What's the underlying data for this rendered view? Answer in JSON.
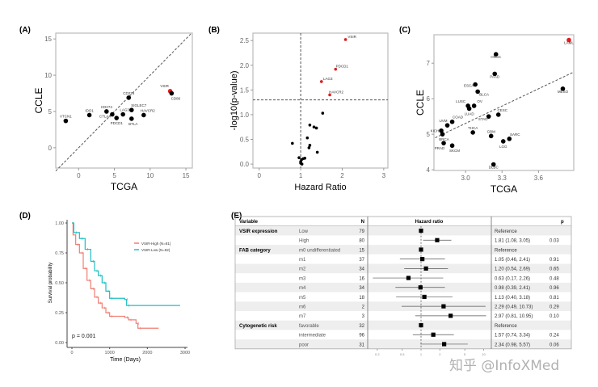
{
  "panels": {
    "a": "(A)",
    "b": "(B)",
    "c": "(C)",
    "d": "(D)",
    "e": "(E)"
  },
  "watermark": "知乎 @InfoXMed",
  "colors": {
    "highlight": "#e41a1c",
    "point": "#000000",
    "high": "#f07e74",
    "low": "#1fbfc3",
    "frame": "#bbbbbb"
  },
  "chart_data": [
    {
      "id": "a",
      "type": "scatter",
      "xlabel": "TCGA",
      "ylabel": "CCLE",
      "xlim": [
        -3.2,
        15.9
      ],
      "ylim": [
        -2.8,
        15.8
      ],
      "xticks": [
        0,
        5,
        10,
        15
      ],
      "yticks": [
        0,
        5,
        10,
        15
      ],
      "reference_line": "y = x (dashed)",
      "points": [
        {
          "label": "VTCN1",
          "x": -1.8,
          "y": 3.7
        },
        {
          "label": "IDO1",
          "x": 1.5,
          "y": 4.5
        },
        {
          "label": "CD274",
          "x": 3.9,
          "y": 5.0
        },
        {
          "label": "CTLA4",
          "x": 4.7,
          "y": 4.6
        },
        {
          "label": "PDCD1",
          "x": 5.3,
          "y": 4.1
        },
        {
          "label": "LAG3",
          "x": 6.2,
          "y": 4.6
        },
        {
          "label": "CD276",
          "x": 7.0,
          "y": 6.9
        },
        {
          "label": "SIGLEC7",
          "x": 7.4,
          "y": 5.2
        },
        {
          "label": "BTLA",
          "x": 7.4,
          "y": 4.0
        },
        {
          "label": "HAVCR2",
          "x": 9.1,
          "y": 4.5
        },
        {
          "label": "VSIR",
          "x": 12.8,
          "y": 7.8,
          "highlight": true
        },
        {
          "label": "CD86",
          "x": 13.0,
          "y": 7.5
        }
      ]
    },
    {
      "id": "b",
      "type": "scatter",
      "xlabel": "Hazard Ratio",
      "ylabel": "-log10(p-value)",
      "xlim": [
        -0.15,
        3.1
      ],
      "ylim": [
        -0.08,
        2.65
      ],
      "xticks": [
        0,
        1,
        2,
        3
      ],
      "yticks": [
        "0.0",
        "0.5",
        "1.0",
        "1.5",
        "2.0",
        "2.5"
      ],
      "vline": 1,
      "hline": 1.3,
      "points": [
        {
          "label": "VSIR",
          "x": 2.08,
          "y": 2.52,
          "highlight": true
        },
        {
          "label": "PDCD1",
          "x": 1.84,
          "y": 1.92,
          "highlight": true
        },
        {
          "label": "LAG3",
          "x": 1.5,
          "y": 1.67,
          "highlight": true
        },
        {
          "label": "HAVCR2",
          "x": 1.7,
          "y": 1.4,
          "highlight": true
        },
        {
          "x": 1.53,
          "y": 1.03
        },
        {
          "x": 1.22,
          "y": 0.79
        },
        {
          "x": 1.32,
          "y": 0.75
        },
        {
          "x": 1.38,
          "y": 0.73
        },
        {
          "x": 0.8,
          "y": 0.42
        },
        {
          "x": 1.16,
          "y": 0.53
        },
        {
          "x": 1.22,
          "y": 0.38
        },
        {
          "x": 1.2,
          "y": 0.33
        },
        {
          "x": 1.4,
          "y": 0.24
        },
        {
          "x": 0.96,
          "y": 0.13
        },
        {
          "x": 1.0,
          "y": 0.05
        },
        {
          "x": 1.02,
          "y": 0.09
        },
        {
          "x": 1.06,
          "y": 0.11
        },
        {
          "x": 1.1,
          "y": 0.12
        },
        {
          "x": 1.0,
          "y": 0.02
        },
        {
          "x": 1.03,
          "y": 0.0
        }
      ]
    },
    {
      "id": "c",
      "type": "scatter",
      "xlabel": "TCGA",
      "ylabel": "CCLE",
      "xlim": [
        2.74,
        3.89
      ],
      "ylim": [
        3.98,
        7.8
      ],
      "xticks": [
        "3.0",
        "3.3",
        "3.6"
      ],
      "yticks": [
        4,
        5,
        6,
        7
      ],
      "trend_line": [
        [
          2.75,
          4.9
        ],
        [
          3.89,
          6.75
        ]
      ],
      "points": [
        {
          "label": "LAML",
          "x": 3.85,
          "y": 7.65,
          "highlight": true
        },
        {
          "label": "HNSC",
          "x": 3.25,
          "y": 7.25
        },
        {
          "label": "PAAD",
          "x": 3.24,
          "y": 6.7
        },
        {
          "label": "ESCA",
          "x": 3.08,
          "y": 6.4
        },
        {
          "label": "BLCA",
          "x": 3.1,
          "y": 6.2
        },
        {
          "label": "LUSC",
          "x": 3.02,
          "y": 5.8
        },
        {
          "label": "OV",
          "x": 3.07,
          "y": 5.8
        },
        {
          "label": "LUAD",
          "x": 3.03,
          "y": 5.72
        },
        {
          "label": "CESC",
          "x": 3.27,
          "y": 5.55
        },
        {
          "label": "STAD",
          "x": 3.19,
          "y": 5.5
        },
        {
          "label": "UVM",
          "x": 2.85,
          "y": 5.25
        },
        {
          "label": "COAD",
          "x": 2.89,
          "y": 5.35
        },
        {
          "label": "MESO",
          "x": 3.8,
          "y": 6.28
        },
        {
          "label": "KICH",
          "x": 2.8,
          "y": 5.1
        },
        {
          "label": "BRCA",
          "x": 2.81,
          "y": 5.0
        },
        {
          "label": "PRAD",
          "x": 2.82,
          "y": 4.75
        },
        {
          "label": "SKCM",
          "x": 2.89,
          "y": 4.68
        },
        {
          "label": "THCA",
          "x": 3.06,
          "y": 5.05
        },
        {
          "label": "GBM",
          "x": 3.21,
          "y": 4.95
        },
        {
          "label": "LGG",
          "x": 3.31,
          "y": 4.8
        },
        {
          "label": "SARC",
          "x": 3.36,
          "y": 4.87
        },
        {
          "label": "DLBC",
          "x": 3.23,
          "y": 4.15
        }
      ]
    },
    {
      "id": "d",
      "type": "line",
      "xlabel": "Time (Days)",
      "ylabel": "Survival probability",
      "xlim": [
        -40,
        3000
      ],
      "ylim": [
        0,
        1
      ],
      "xticks": [
        0,
        1000,
        2000,
        3000
      ],
      "yticks": [
        "0.00",
        "0.25",
        "0.50",
        "0.75",
        "1.00"
      ],
      "annotation": "p = 0.001",
      "legend_position": "top-right",
      "series": [
        {
          "name": "VSIR-High (N=81)",
          "color": "#f07e74",
          "points": [
            [
              0,
              1
            ],
            [
              30,
              0.9
            ],
            [
              100,
              0.82
            ],
            [
              200,
              0.75
            ],
            [
              300,
              0.62
            ],
            [
              400,
              0.52
            ],
            [
              500,
              0.45
            ],
            [
              600,
              0.38
            ],
            [
              700,
              0.33
            ],
            [
              800,
              0.29
            ],
            [
              900,
              0.25
            ],
            [
              1000,
              0.22
            ],
            [
              1400,
              0.21
            ],
            [
              1500,
              0.19
            ],
            [
              1700,
              0.16
            ],
            [
              1750,
              0.12
            ],
            [
              2300,
              0.12
            ]
          ]
        },
        {
          "name": "VSIR-Low (N=82)",
          "color": "#1fbfc3",
          "points": [
            [
              0,
              1
            ],
            [
              50,
              0.92
            ],
            [
              200,
              0.87
            ],
            [
              350,
              0.78
            ],
            [
              500,
              0.68
            ],
            [
              600,
              0.6
            ],
            [
              700,
              0.56
            ],
            [
              800,
              0.5
            ],
            [
              900,
              0.43
            ],
            [
              1000,
              0.37
            ],
            [
              1400,
              0.36
            ],
            [
              1450,
              0.31
            ],
            [
              2870,
              0.31
            ]
          ]
        }
      ]
    },
    {
      "id": "e",
      "type": "table",
      "headers": {
        "variable": "Variable",
        "n": "N",
        "hr": "Hazard ratio",
        "p": "p"
      },
      "xscale": "log",
      "xticks": [
        0.2,
        0.5,
        1,
        2,
        5,
        10
      ],
      "rows": [
        {
          "variable": "VSIR expression",
          "level": "Low",
          "n": "79",
          "hr": 1,
          "lo": null,
          "hi": null,
          "text": "Reference",
          "p": ""
        },
        {
          "variable": "",
          "level": "High",
          "n": "80",
          "hr": 1.81,
          "lo": 1.08,
          "hi": 3.05,
          "text": "1.81 (1.08, 3.05)",
          "p": "0.03"
        },
        {
          "variable": "FAB category",
          "level": "m0 undifferentiated",
          "n": "15",
          "hr": 1,
          "lo": null,
          "hi": null,
          "text": "Reference",
          "p": ""
        },
        {
          "variable": "",
          "level": "m1",
          "n": "37",
          "hr": 1.05,
          "lo": 0.46,
          "hi": 2.41,
          "text": "1.05 (0.46, 2.41)",
          "p": "0.91"
        },
        {
          "variable": "",
          "level": "m2",
          "n": "34",
          "hr": 1.2,
          "lo": 0.54,
          "hi": 2.69,
          "text": "1.20 (0.54, 2.69)",
          "p": "0.65"
        },
        {
          "variable": "",
          "level": "m3",
          "n": "16",
          "hr": 0.63,
          "lo": 0.17,
          "hi": 2.26,
          "text": "0.63 (0.17, 2.26)",
          "p": "0.48"
        },
        {
          "variable": "",
          "level": "m4",
          "n": "34",
          "hr": 0.98,
          "lo": 0.39,
          "hi": 2.41,
          "text": "0.98 (0.39, 2.41)",
          "p": "0.96"
        },
        {
          "variable": "",
          "level": "m5",
          "n": "18",
          "hr": 1.13,
          "lo": 0.4,
          "hi": 3.18,
          "text": "1.13 (0.40, 3.18)",
          "p": "0.81"
        },
        {
          "variable": "",
          "level": "m6",
          "n": "2",
          "hr": 2.29,
          "lo": 0.49,
          "hi": 10.73,
          "text": "2.29 (0.49, 10.73)",
          "p": "0.29"
        },
        {
          "variable": "",
          "level": "m7",
          "n": "3",
          "hr": 2.97,
          "lo": 0.81,
          "hi": 10.95,
          "text": "2.97 (0.81, 10.95)",
          "p": "0.10"
        },
        {
          "variable": "Cytogenetic risk",
          "level": "favorable",
          "n": "32",
          "hr": 1,
          "lo": null,
          "hi": null,
          "text": "Reference",
          "p": ""
        },
        {
          "variable": "",
          "level": "intermediate",
          "n": "96",
          "hr": 1.57,
          "lo": 0.74,
          "hi": 3.34,
          "text": "1.57 (0.74, 3.34)",
          "p": "0.24"
        },
        {
          "variable": "",
          "level": "poor",
          "n": "31",
          "hr": 2.34,
          "lo": 0.98,
          "hi": 5.57,
          "text": "2.34 (0.98, 5.57)",
          "p": "0.06"
        }
      ]
    }
  ]
}
